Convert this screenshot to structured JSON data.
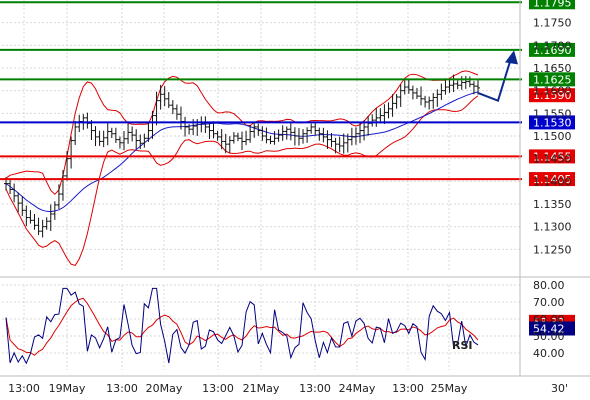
{
  "colors": {
    "background": "#ffffff",
    "grid": "#d9d9d9",
    "price_bar": "#111111",
    "bollinger": "#dd0000",
    "moving_average": "#1a1acc",
    "support": "#e60000",
    "resistance": "#008000",
    "pivot": "#0000cc",
    "rsi_line": "#000080",
    "rsi_signal": "#dd0000",
    "forecast_arrow": "#0a2a8f",
    "badge_text": "#ffffff"
  },
  "chart_data": [
    {
      "type": "line",
      "panel": "price",
      "grid": true,
      "x_labels": [
        "13:00",
        "19May",
        "13:00",
        "20May",
        "13:00",
        "21May",
        "13:00",
        "24May",
        "13:00",
        "25May"
      ],
      "x_corner_label": "30'",
      "y_ticks": [
        1.125,
        1.13,
        1.135,
        1.14,
        1.145,
        1.15,
        1.155,
        1.16,
        1.165,
        1.17,
        1.175
      ],
      "y_tick_labels": [
        "1.1250",
        "1.1300",
        "1.1350",
        "1.1400",
        "1.1450",
        "1.1500",
        "1.1550",
        "1.1600",
        "1.1650",
        "1.1700",
        "1.1750"
      ],
      "ylim": [
        1.12,
        1.18
      ],
      "levels": [
        {
          "value": 1.1795,
          "label": "1.1795",
          "role": "resistance"
        },
        {
          "value": 1.169,
          "label": "1.1690",
          "role": "resistance"
        },
        {
          "value": 1.1625,
          "label": "1.1625",
          "role": "resistance"
        },
        {
          "value": 1.159,
          "label": "1.1590",
          "role": "current"
        },
        {
          "value": 1.153,
          "label": "1.1530",
          "role": "pivot"
        },
        {
          "value": 1.1455,
          "label": "1.1455",
          "role": "support"
        },
        {
          "value": 1.1405,
          "label": "1.1405",
          "role": "support"
        }
      ],
      "close_series": [
        1.1395,
        1.1382,
        1.1368,
        1.1352,
        1.1336,
        1.132,
        1.1314,
        1.1303,
        1.129,
        1.13,
        1.1312,
        1.1328,
        1.1348,
        1.1372,
        1.1412,
        1.145,
        1.149,
        1.152,
        1.1532,
        1.154,
        1.1528,
        1.1512,
        1.1498,
        1.1488,
        1.1496,
        1.151,
        1.1505,
        1.1492,
        1.1485,
        1.1494,
        1.1508,
        1.1502,
        1.149,
        1.1484,
        1.1495,
        1.1512,
        1.1545,
        1.1578,
        1.1592,
        1.1582,
        1.1568,
        1.156,
        1.1548,
        1.1532,
        1.152,
        1.1515,
        1.1522,
        1.153,
        1.1528,
        1.152,
        1.1512,
        1.1505,
        1.1498,
        1.1488,
        1.1482,
        1.149,
        1.15,
        1.1495,
        1.1488,
        1.1492,
        1.151,
        1.152,
        1.1512,
        1.15,
        1.1492,
        1.1488,
        1.1495,
        1.1502,
        1.151,
        1.1515,
        1.1508,
        1.15,
        1.1495,
        1.1505,
        1.1512,
        1.152,
        1.1512,
        1.1505,
        1.1498,
        1.1492,
        1.1488,
        1.1482,
        1.1478,
        1.1485,
        1.1492,
        1.1498,
        1.1505,
        1.1512,
        1.152,
        1.1528,
        1.1535,
        1.154,
        1.1545,
        1.1552,
        1.156,
        1.1572,
        1.1586,
        1.16,
        1.1608,
        1.1602,
        1.1595,
        1.1588,
        1.1582,
        1.1575,
        1.1578,
        1.1585,
        1.1592,
        1.16,
        1.1608,
        1.1612,
        1.1615,
        1.1612,
        1.1618,
        1.162,
        1.1614,
        1.161,
        1.1606
      ],
      "rsi_panel": {
        "label": "RSI",
        "ylim": [
          30,
          80
        ],
        "y_ticks": [
          40,
          50,
          60,
          70,
          80
        ],
        "y_tick_labels": [
          "40.00",
          "50.00",
          "60.00",
          "70.00",
          "80.00"
        ],
        "series_labels": [
          {
            "value": 58.32,
            "label": "58.32",
            "role": "signal"
          },
          {
            "value": 54.42,
            "label": "54.42",
            "role": "rsi"
          }
        ]
      },
      "forecast": {
        "direction": "up",
        "from": 1.1595,
        "pivot": 1.1578,
        "to": 1.168
      }
    }
  ]
}
